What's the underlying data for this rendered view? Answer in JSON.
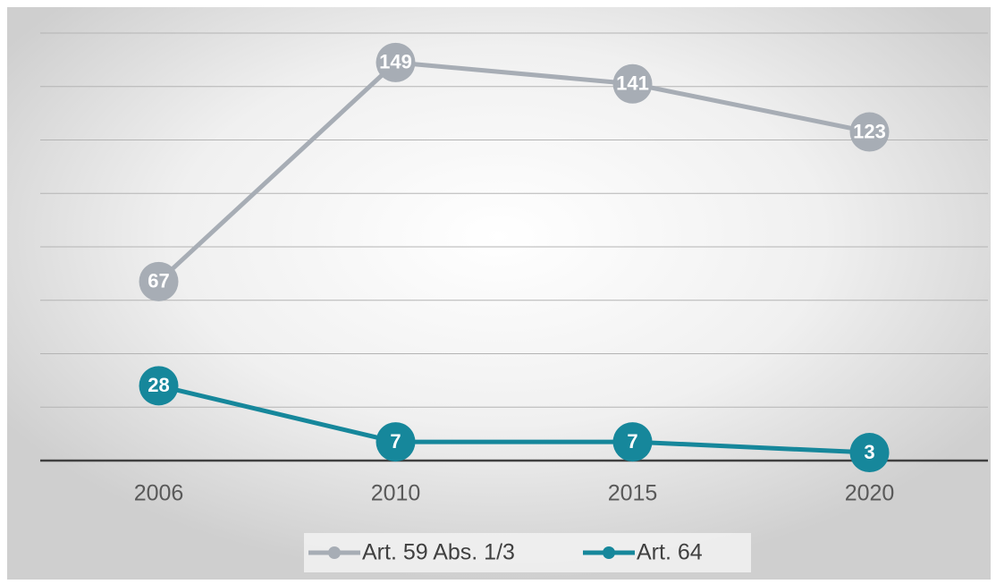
{
  "chart_data": {
    "type": "line",
    "categories": [
      "2006",
      "2010",
      "2015",
      "2020"
    ],
    "series": [
      {
        "name": "Art. 59 Abs. 1/3",
        "color": "#a7adb5",
        "values": [
          67,
          149,
          141,
          123
        ]
      },
      {
        "name": "Art. 64",
        "color": "#16879b",
        "values": [
          28,
          7,
          7,
          3
        ]
      }
    ],
    "ylim": [
      0,
      160
    ],
    "yticks": [
      0,
      20,
      40,
      60,
      80,
      100,
      120,
      140,
      160
    ],
    "grid": true,
    "legend": "bottom"
  }
}
